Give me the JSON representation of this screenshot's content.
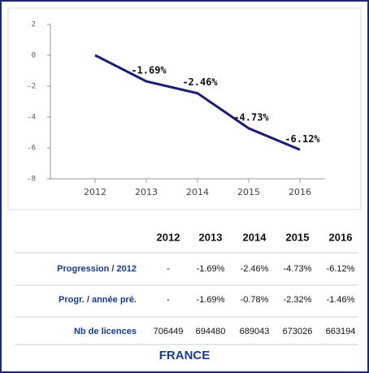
{
  "chart_data": {
    "type": "line",
    "categories": [
      "2012",
      "2013",
      "2014",
      "2015",
      "2016"
    ],
    "series": [
      {
        "color": "#1c1c78",
        "values": [
          0,
          -1.69,
          -2.46,
          -4.73,
          -6.12
        ],
        "value_labels": [
          null,
          "-1.69%",
          "-2.46%",
          "-4.73%",
          "-6.12%"
        ]
      }
    ],
    "ylim": [
      -8,
      2
    ],
    "yticks": [
      2,
      0,
      -2,
      -4,
      -6,
      -8
    ]
  },
  "table": {
    "columns": [
      "2012",
      "2013",
      "2014",
      "2015",
      "2016"
    ],
    "rows": [
      {
        "label": "Progression / 2012",
        "cells": [
          "-",
          "-1.69%",
          "-2.46%",
          "-4.73%",
          "-6.12%"
        ]
      },
      {
        "label": "Progr. / année pré.",
        "cells": [
          "-",
          "-1.69%",
          "-0.78%",
          "-2.32%",
          "-1.46%"
        ]
      },
      {
        "label": "Nb de licences",
        "cells": [
          "706449",
          "694480",
          "689043",
          "673026",
          "663194"
        ]
      }
    ],
    "footer": "FRANCE"
  }
}
